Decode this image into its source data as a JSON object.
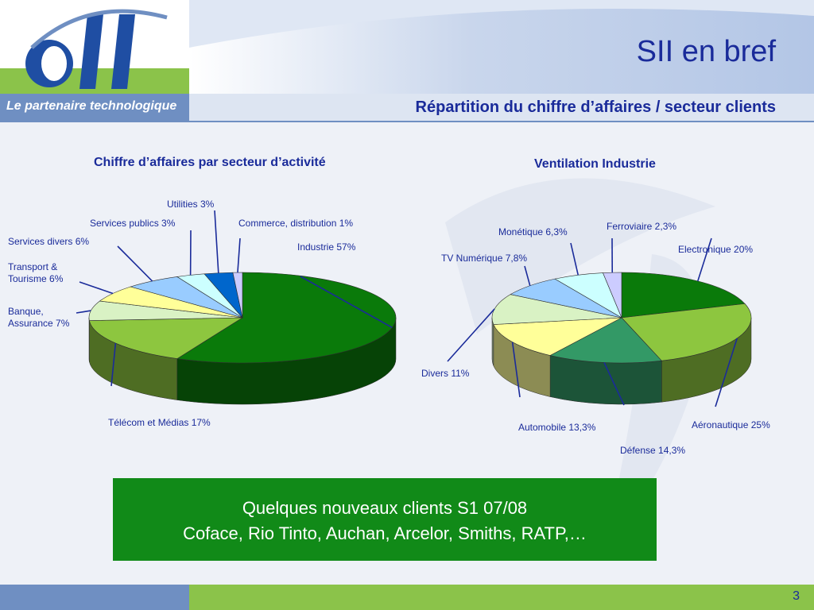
{
  "header": {
    "tagline": "Le partenaire technologique",
    "page_title": "SII en bref",
    "subtitle": "Répartition du chiffre d’affaires / secteur clients"
  },
  "colors": {
    "title_blue": "#1a2b9a",
    "brand_green": "#118a18",
    "band_blue": "#6f8fc2",
    "band_green": "#8bc34a"
  },
  "chart_data": [
    {
      "type": "pie",
      "title": "Chiffre d’affaires par secteur d’activité",
      "categories": [
        "Industrie",
        "Télécom et Médias",
        "Banque, Assurance",
        "Transport & Tourisme",
        "Services divers",
        "Services publics",
        "Utilities",
        "Commerce, distribution"
      ],
      "values": [
        57,
        17,
        7,
        6,
        6,
        3,
        3,
        1
      ],
      "labels": [
        "Industrie 57%",
        "Télécom et Médias 17%",
        "Banque,|Assurance 7%",
        "Transport &|Tourisme 6%",
        "Services divers  6%",
        "Services publics 3%",
        "Utilities 3%",
        "Commerce, distribution 1%"
      ],
      "colors": [
        "#0a7a0a",
        "#8dc63f",
        "#d9f2c4",
        "#ffff99",
        "#99ccff",
        "#ccffff",
        "#0066cc",
        "#ccccff"
      ]
    },
    {
      "type": "pie",
      "title": "Ventilation Industrie",
      "categories": [
        "Electronique",
        "Aéronautique",
        "Défense",
        "Automobile",
        "Divers",
        "TV Numérique",
        "Monétique",
        "Ferroviaire"
      ],
      "values": [
        20,
        25,
        14.3,
        13.3,
        11,
        7.8,
        6.3,
        2.3
      ],
      "labels": [
        "Electronique 20%",
        "Aéronautique 25%",
        "Défense 14,3%",
        "Automobile 13,3%",
        "Divers 11%",
        "TV Numérique 7,8%",
        "Monétique 6,3%",
        "Ferroviaire 2,3%"
      ],
      "colors": [
        "#0a7a0a",
        "#8dc63f",
        "#339966",
        "#ffff99",
        "#d9f2c4",
        "#99ccff",
        "#ccffff",
        "#ccccff"
      ]
    }
  ],
  "clients": {
    "line1": "Quelques nouveaux clients S1 07/08",
    "line2": "Coface, Rio Tinto, Auchan, Arcelor, Smiths, RATP,…"
  },
  "footer": {
    "page_number": "3"
  }
}
